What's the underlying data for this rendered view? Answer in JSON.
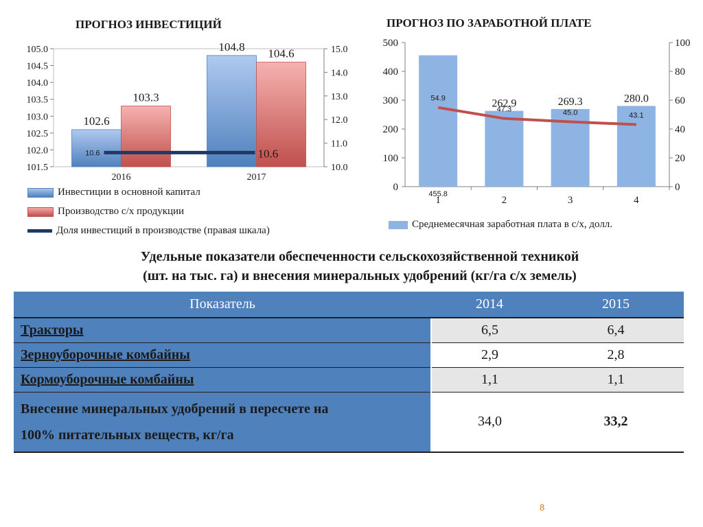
{
  "chart_data": [
    {
      "type": "bar",
      "title": "ПРОГНОЗ ИНВЕСТИЦИЙ",
      "categories": [
        "2016",
        "2017"
      ],
      "series": [
        {
          "name": "Инвестиции в основной капитал",
          "values": [
            102.6,
            104.8
          ],
          "color": "#4f81bd",
          "axis": "left"
        },
        {
          "name": "Производство с/х продукции",
          "values": [
            103.3,
            104.6
          ],
          "color": "#c0504d",
          "axis": "left"
        },
        {
          "name": "Доля инвестиций в производстве (правая шкала)",
          "type": "line",
          "values": [
            10.6,
            10.6
          ],
          "color": "#1f3864",
          "axis": "right"
        }
      ],
      "ylim_left": [
        101.5,
        105.0
      ],
      "yticks_left": [
        "105.0",
        "104.5",
        "104.0",
        "103.5",
        "103.0",
        "102.5",
        "102.0",
        "101.5"
      ],
      "ylim_right": [
        10.0,
        15.0
      ],
      "yticks_right": [
        "15.0",
        "14.0",
        "13.0",
        "12.0",
        "11.0",
        "10.0"
      ],
      "data_labels": [
        "102.6",
        "104.8",
        "103.3",
        "104.6",
        "10.6",
        "10.6"
      ],
      "legend": "bottom"
    },
    {
      "type": "bar",
      "title": "ПРОГНОЗ ПО ЗАРАБОТНОЙ ПЛАТЕ",
      "categories": [
        "1",
        "2",
        "3",
        "4"
      ],
      "series": [
        {
          "name": "Среднемесячная заработная плата в с/х, долл.",
          "values": [
            455.8,
            262.9,
            269.3,
            280.0
          ],
          "color": "#8eb4e3",
          "axis": "left",
          "labels": [
            "455.8",
            "262.9",
            "269.3",
            "280.0"
          ]
        },
        {
          "type": "line",
          "values": [
            54.9,
            47.3,
            45.0,
            43.1
          ],
          "color": "#c0504d",
          "axis": "right",
          "labels": [
            "54.9",
            "47.3",
            "45.0",
            "43.1"
          ]
        }
      ],
      "ylim_left": [
        0,
        500
      ],
      "yticks_left": [
        "500",
        "400",
        "300",
        "200",
        "100",
        "0"
      ],
      "ylim_right": [
        0,
        100
      ],
      "yticks_right": [
        "100",
        "80",
        "60",
        "40",
        "20",
        "0"
      ],
      "legend": "bottom"
    },
    {
      "type": "table",
      "title": "Удельные показатели обеспеченности сельскохозяйственной техникой (шт. на тыс. га) и внесения минеральных удобрений (кг/га с/х земель)",
      "columns": [
        "Показатель",
        "2014",
        "2015"
      ],
      "rows": [
        [
          "Тракторы",
          "6,5",
          "6,4"
        ],
        [
          "Зерноуборочные комбайны",
          "2,9",
          "2,8"
        ],
        [
          "Кормоуборочные комбайны",
          "1,1",
          "1,1"
        ],
        [
          "Внесение минеральных удобрений в пересчете на 100% питательных веществ, кг/га",
          "34,0",
          "33,2"
        ]
      ]
    }
  ],
  "table_heading": {
    "line1": "Удельные показатели обеспеченности сельскохозяйственной техникой",
    "line2": "(шт. на тыс. га) и внесения минеральных удобрений (кг/га с/х земель)"
  },
  "table": {
    "headers": [
      "Показатель",
      "2014",
      "2015"
    ],
    "rows": [
      {
        "name": "Тракторы",
        "v2014": "6,5",
        "v2015": "6,4"
      },
      {
        "name": "Зерноуборочные комбайны",
        "v2014": "2,9",
        "v2015": "2,8"
      },
      {
        "name": "Кормоуборочные комбайны",
        "v2014": "1,1",
        "v2015": "1,1"
      },
      {
        "name_line1": "Внесение минеральных удобрений в пересчете на",
        "name_line2": "100% питательных веществ, кг/га",
        "v2014": "34,0",
        "v2015": "33,2"
      }
    ]
  },
  "page_number": "8"
}
